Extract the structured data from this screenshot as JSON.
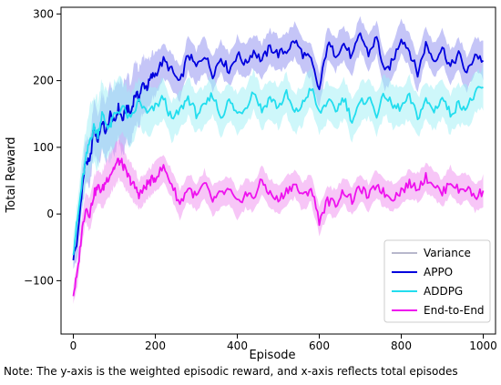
{
  "note": "Note: The y-axis is the weighted episodic reward, and x-axis reflects total episodes",
  "chart_data": {
    "type": "line",
    "title": "",
    "xlabel": "Episode",
    "ylabel": "Total Reward",
    "xlim": [
      -30,
      1030
    ],
    "ylim": [
      -180,
      310
    ],
    "xticks": [
      0,
      200,
      400,
      600,
      800,
      1000
    ],
    "yticks": [
      -100,
      0,
      100,
      200,
      300
    ],
    "legend_position": "lower-right",
    "legend": [
      "Variance",
      "APPO",
      "ADDPG",
      "End-to-End"
    ],
    "colors": {
      "variance": "#b8b8cc",
      "APPO": "#0000dd",
      "ADDPG": "#22ddee",
      "End-to-End": "#ee11ee"
    },
    "series": [
      {
        "name": "APPO",
        "color": "#0000dd",
        "band_color": "#8c8cf0",
        "x": [
          0,
          10,
          20,
          30,
          40,
          50,
          60,
          70,
          80,
          90,
          100,
          110,
          120,
          130,
          140,
          150,
          160,
          170,
          180,
          190,
          200,
          220,
          240,
          260,
          280,
          300,
          320,
          340,
          360,
          380,
          400,
          420,
          440,
          460,
          480,
          500,
          520,
          540,
          560,
          580,
          600,
          620,
          640,
          660,
          680,
          700,
          720,
          740,
          760,
          780,
          800,
          820,
          840,
          860,
          880,
          900,
          920,
          940,
          960,
          980,
          1000
        ],
        "y": [
          -65,
          -40,
          30,
          80,
          75,
          130,
          110,
          140,
          120,
          150,
          135,
          160,
          140,
          160,
          150,
          180,
          175,
          195,
          190,
          205,
          210,
          230,
          215,
          195,
          240,
          220,
          240,
          210,
          235,
          215,
          240,
          225,
          245,
          230,
          250,
          240,
          245,
          260,
          240,
          230,
          185,
          255,
          240,
          255,
          235,
          270,
          240,
          265,
          210,
          230,
          265,
          245,
          210,
          255,
          230,
          250,
          220,
          240,
          210,
          240,
          230
        ],
        "spread": [
          20,
          30,
          35,
          40,
          40,
          45,
          45,
          50,
          50,
          55,
          55,
          55,
          60,
          60,
          55,
          55,
          50,
          50,
          45,
          40,
          40,
          30,
          30,
          30,
          30,
          30,
          30,
          30,
          30,
          30,
          30,
          30,
          30,
          30,
          30,
          30,
          30,
          30,
          30,
          30,
          30,
          30,
          30,
          30,
          30,
          30,
          30,
          30,
          30,
          30,
          30,
          30,
          30,
          30,
          30,
          30,
          30,
          30,
          30,
          30,
          30
        ]
      },
      {
        "name": "ADDPG",
        "color": "#22ddee",
        "band_color": "#9ef0f6",
        "x": [
          0,
          10,
          20,
          30,
          40,
          50,
          60,
          70,
          80,
          90,
          100,
          120,
          140,
          160,
          180,
          200,
          220,
          240,
          260,
          280,
          300,
          320,
          340,
          360,
          380,
          400,
          420,
          440,
          460,
          480,
          500,
          520,
          540,
          560,
          580,
          600,
          620,
          640,
          660,
          680,
          700,
          720,
          740,
          760,
          780,
          800,
          820,
          840,
          860,
          880,
          900,
          920,
          940,
          960,
          980,
          1000
        ],
        "y": [
          -55,
          -10,
          40,
          80,
          110,
          130,
          120,
          150,
          135,
          130,
          150,
          160,
          140,
          170,
          150,
          160,
          175,
          140,
          155,
          175,
          150,
          160,
          180,
          145,
          170,
          150,
          160,
          185,
          155,
          175,
          160,
          180,
          150,
          165,
          190,
          150,
          170,
          155,
          175,
          140,
          165,
          175,
          150,
          180,
          160,
          160,
          175,
          145,
          170,
          155,
          175,
          150,
          165,
          160,
          180,
          190
        ],
        "spread": [
          25,
          35,
          45,
          50,
          55,
          60,
          60,
          60,
          60,
          60,
          55,
          50,
          45,
          40,
          40,
          35,
          35,
          35,
          35,
          35,
          35,
          35,
          35,
          35,
          35,
          35,
          35,
          35,
          35,
          35,
          35,
          35,
          35,
          35,
          35,
          35,
          35,
          35,
          35,
          35,
          35,
          35,
          35,
          35,
          35,
          35,
          35,
          35,
          35,
          35,
          35,
          35,
          35,
          35,
          35,
          35
        ]
      },
      {
        "name": "End-to-End",
        "color": "#ee11ee",
        "band_color": "#f08ef0",
        "x": [
          0,
          10,
          20,
          30,
          40,
          50,
          60,
          70,
          80,
          90,
          100,
          110,
          120,
          130,
          140,
          150,
          160,
          170,
          180,
          190,
          200,
          220,
          240,
          260,
          280,
          300,
          320,
          340,
          360,
          380,
          400,
          420,
          440,
          460,
          480,
          500,
          520,
          540,
          560,
          580,
          600,
          620,
          640,
          660,
          680,
          700,
          720,
          740,
          760,
          780,
          800,
          820,
          840,
          860,
          880,
          900,
          920,
          940,
          960,
          980,
          1000
        ],
        "y": [
          -120,
          -90,
          -30,
          10,
          0,
          30,
          40,
          35,
          50,
          60,
          70,
          80,
          75,
          60,
          50,
          40,
          30,
          35,
          45,
          50,
          55,
          70,
          45,
          15,
          40,
          25,
          45,
          20,
          30,
          35,
          15,
          30,
          25,
          50,
          30,
          20,
          35,
          45,
          25,
          40,
          -10,
          20,
          15,
          35,
          20,
          40,
          25,
          45,
          30,
          25,
          35,
          45,
          40,
          55,
          45,
          30,
          50,
          35,
          40,
          25,
          35
        ],
        "spread": [
          15,
          20,
          25,
          25,
          30,
          30,
          30,
          30,
          35,
          35,
          35,
          35,
          35,
          30,
          30,
          30,
          25,
          25,
          25,
          25,
          25,
          25,
          25,
          25,
          25,
          25,
          25,
          25,
          25,
          25,
          25,
          25,
          25,
          25,
          25,
          25,
          25,
          25,
          25,
          25,
          25,
          25,
          25,
          25,
          25,
          25,
          25,
          25,
          25,
          25,
          25,
          25,
          25,
          25,
          25,
          25,
          25,
          25,
          25,
          25,
          25
        ]
      }
    ]
  }
}
